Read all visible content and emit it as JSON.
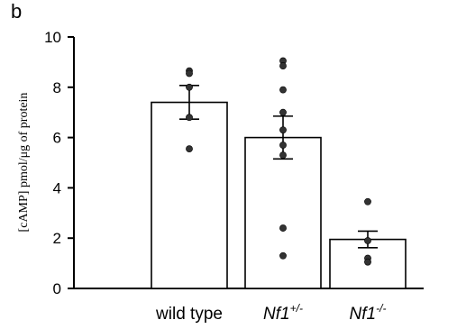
{
  "panel_label": "b",
  "chart_data": {
    "type": "bar",
    "categories": [
      {
        "base": "wild type",
        "sup": ""
      },
      {
        "base": "Nf1",
        "sup": "+/-"
      },
      {
        "base": "Nf1",
        "sup": "-/-"
      }
    ],
    "values": [
      7.4,
      6.0,
      1.95
    ],
    "error": [
      0.67,
      0.85,
      0.33
    ],
    "points": [
      [
        8.65,
        8.55,
        8.0,
        6.8,
        5.55
      ],
      [
        9.05,
        8.85,
        7.9,
        7.0,
        6.3,
        5.7,
        5.3,
        2.4,
        1.3
      ],
      [
        3.45,
        1.9,
        1.2,
        1.05
      ]
    ],
    "ylabel": "[cAMP] pmol/μg of protein",
    "ylim": [
      0,
      10
    ],
    "yticks": [
      0,
      2,
      4,
      6,
      8,
      10
    ],
    "grid": false,
    "colors": {
      "bar_fill": "#ffffff",
      "stroke": "#000000",
      "point": "#333333"
    }
  }
}
